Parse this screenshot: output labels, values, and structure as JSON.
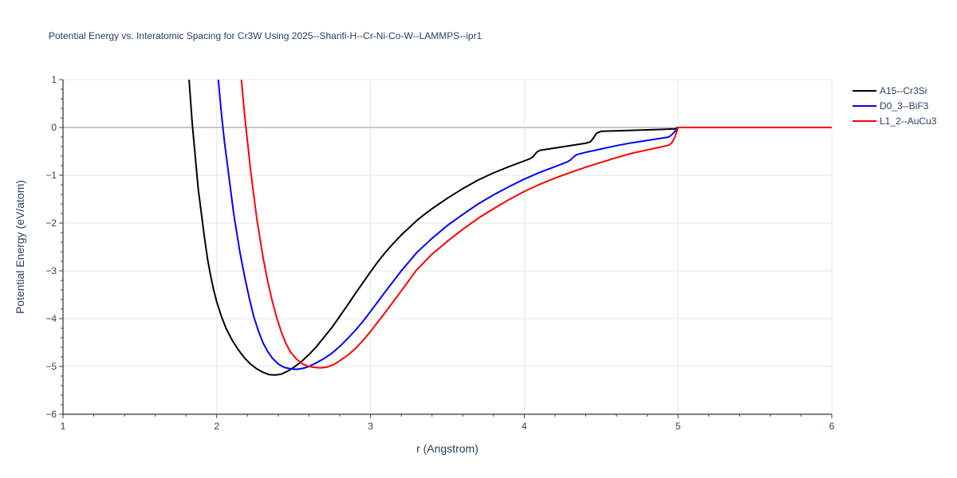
{
  "chart_data": {
    "type": "line",
    "title": "Potential Energy vs. Interatomic Spacing for Cr3W Using 2025--Sharifi-H--Cr-Ni-Co-W--LAMMPS--ipr1",
    "xlabel": "r (Angstrom)",
    "ylabel": "Potential Energy (eV/atom)",
    "xlim": [
      1,
      6
    ],
    "ylim": [
      -6,
      1
    ],
    "xticks": [
      1,
      2,
      3,
      4,
      5,
      6
    ],
    "xtick_labels": [
      "1",
      "2",
      "3",
      "4",
      "5",
      "6"
    ],
    "yticks": [
      1,
      0,
      -1,
      -2,
      -3,
      -4,
      -5,
      -6
    ],
    "ytick_labels": [
      "1",
      "0",
      "−1",
      "−2",
      "−3",
      "−4",
      "−5",
      "−6"
    ],
    "grid": true,
    "legend_position": "top-right",
    "series": [
      {
        "name": "A15--Cr3Si",
        "color": "#000000",
        "x": [
          1.82,
          1.84,
          1.86,
          1.88,
          1.9,
          1.92,
          1.94,
          1.96,
          1.98,
          2.0,
          2.03,
          2.06,
          2.1,
          2.14,
          2.18,
          2.22,
          2.26,
          2.3,
          2.34,
          2.38,
          2.42,
          2.46,
          2.5,
          2.55,
          2.6,
          2.65,
          2.7,
          2.75,
          2.8,
          2.85,
          2.9,
          2.95,
          3.0,
          3.05,
          3.1,
          3.15,
          3.2,
          3.25,
          3.3,
          3.35,
          3.4,
          3.5,
          3.6,
          3.7,
          3.8,
          3.9,
          4.0,
          4.04,
          4.06,
          4.08,
          4.1,
          4.2,
          4.3,
          4.4,
          4.43,
          4.45,
          4.47,
          4.5,
          4.6,
          4.7,
          4.8,
          4.9,
          4.98,
          5.0,
          5.5,
          6.0
        ],
        "y": [
          1.0,
          0.1,
          -0.6,
          -1.3,
          -1.8,
          -2.3,
          -2.75,
          -3.1,
          -3.4,
          -3.65,
          -3.95,
          -4.2,
          -4.45,
          -4.65,
          -4.82,
          -4.95,
          -5.05,
          -5.12,
          -5.17,
          -5.18,
          -5.16,
          -5.1,
          -5.02,
          -4.9,
          -4.75,
          -4.58,
          -4.38,
          -4.18,
          -3.95,
          -3.72,
          -3.48,
          -3.25,
          -3.02,
          -2.8,
          -2.6,
          -2.42,
          -2.25,
          -2.1,
          -1.95,
          -1.82,
          -1.7,
          -1.48,
          -1.28,
          -1.1,
          -0.95,
          -0.82,
          -0.7,
          -0.65,
          -0.6,
          -0.52,
          -0.48,
          -0.43,
          -0.38,
          -0.33,
          -0.3,
          -0.22,
          -0.12,
          -0.08,
          -0.07,
          -0.06,
          -0.05,
          -0.04,
          -0.03,
          0.0,
          0.0,
          0.0
        ]
      },
      {
        "name": "D0_3--BiF3",
        "color": "#0000ff",
        "x": [
          2.01,
          2.03,
          2.05,
          2.07,
          2.09,
          2.11,
          2.13,
          2.15,
          2.18,
          2.21,
          2.24,
          2.27,
          2.3,
          2.33,
          2.36,
          2.4,
          2.44,
          2.48,
          2.52,
          2.56,
          2.6,
          2.65,
          2.7,
          2.75,
          2.8,
          2.85,
          2.9,
          2.95,
          3.0,
          3.1,
          3.2,
          3.3,
          3.4,
          3.5,
          3.6,
          3.7,
          3.8,
          3.9,
          4.0,
          4.1,
          4.2,
          4.28,
          4.3,
          4.32,
          4.34,
          4.4,
          4.5,
          4.6,
          4.7,
          4.8,
          4.9,
          4.94,
          4.96,
          4.98,
          5.0,
          5.5,
          6.0
        ],
        "y": [
          1.0,
          0.3,
          -0.3,
          -0.8,
          -1.3,
          -1.8,
          -2.2,
          -2.6,
          -3.1,
          -3.55,
          -3.95,
          -4.25,
          -4.5,
          -4.68,
          -4.82,
          -4.95,
          -5.02,
          -5.05,
          -5.06,
          -5.04,
          -5.0,
          -4.92,
          -4.83,
          -4.72,
          -4.58,
          -4.42,
          -4.25,
          -4.06,
          -3.85,
          -3.42,
          -3.0,
          -2.62,
          -2.32,
          -2.05,
          -1.82,
          -1.6,
          -1.41,
          -1.24,
          -1.08,
          -0.94,
          -0.82,
          -0.72,
          -0.68,
          -0.62,
          -0.57,
          -0.52,
          -0.45,
          -0.38,
          -0.32,
          -0.27,
          -0.22,
          -0.2,
          -0.15,
          -0.08,
          0.0,
          0.0,
          0.0
        ]
      },
      {
        "name": "L1_2--AuCu3",
        "color": "#ff0000",
        "x": [
          2.16,
          2.18,
          2.2,
          2.22,
          2.24,
          2.26,
          2.28,
          2.3,
          2.33,
          2.36,
          2.39,
          2.42,
          2.45,
          2.48,
          2.52,
          2.56,
          2.6,
          2.64,
          2.68,
          2.72,
          2.76,
          2.8,
          2.85,
          2.9,
          2.95,
          3.0,
          3.1,
          3.2,
          3.3,
          3.4,
          3.5,
          3.6,
          3.7,
          3.8,
          3.9,
          4.0,
          4.1,
          4.2,
          4.3,
          4.4,
          4.5,
          4.6,
          4.7,
          4.8,
          4.9,
          4.94,
          4.96,
          4.98,
          5.0,
          5.5,
          6.0
        ],
        "y": [
          1.0,
          0.3,
          -0.3,
          -0.9,
          -1.4,
          -1.9,
          -2.3,
          -2.7,
          -3.2,
          -3.62,
          -3.98,
          -4.28,
          -4.52,
          -4.7,
          -4.85,
          -4.95,
          -5.0,
          -5.02,
          -5.03,
          -5.01,
          -4.96,
          -4.88,
          -4.77,
          -4.63,
          -4.46,
          -4.27,
          -3.85,
          -3.42,
          -2.98,
          -2.65,
          -2.38,
          -2.13,
          -1.9,
          -1.7,
          -1.51,
          -1.34,
          -1.19,
          -1.06,
          -0.94,
          -0.83,
          -0.73,
          -0.63,
          -0.54,
          -0.47,
          -0.4,
          -0.37,
          -0.32,
          -0.2,
          0.0,
          0.0,
          0.0
        ]
      }
    ]
  }
}
